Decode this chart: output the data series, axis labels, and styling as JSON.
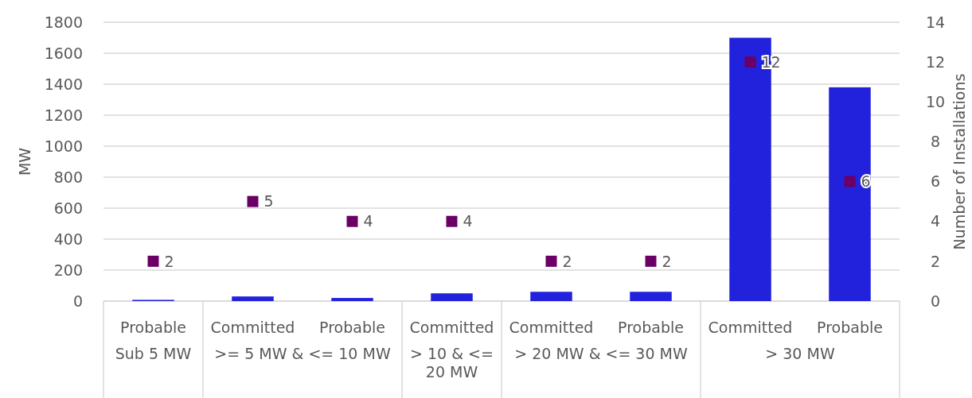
{
  "chart_data": {
    "type": "bar",
    "ylabel": "MW",
    "y2label": "Number of Installations",
    "categories": [
      "Probable",
      "Committed",
      "Probable",
      "Committed",
      "Committed",
      "Probable",
      "Committed",
      "Probable"
    ],
    "series": [
      {
        "color": "#2222dd",
        "values": [
          8,
          30,
          20,
          50,
          60,
          60,
          1700,
          1380
        ]
      },
      {
        "type": "scatter",
        "axis": "y2",
        "color": "#6a0066",
        "marker": "square",
        "values": [
          2,
          5,
          4,
          4,
          2,
          2,
          12,
          6
        ],
        "value_labels": [
          "2",
          "5",
          "4",
          "4",
          "2",
          "2",
          "12",
          "6"
        ]
      }
    ],
    "ylim": [
      0,
      1800
    ],
    "yticks": [
      0,
      200,
      400,
      600,
      800,
      1000,
      1200,
      1400,
      1600,
      1800
    ],
    "y2lim": [
      0,
      14
    ],
    "y2ticks": [
      0,
      2,
      4,
      6,
      8,
      10,
      12,
      14
    ],
    "grid": "y",
    "annotations": [
      "Sub 5 MW",
      ">= 5 MW & <= 10 MW",
      "> 10 & <= 20 MW",
      "> 20 MW & <= 30 MW",
      "> 30 MW"
    ]
  }
}
